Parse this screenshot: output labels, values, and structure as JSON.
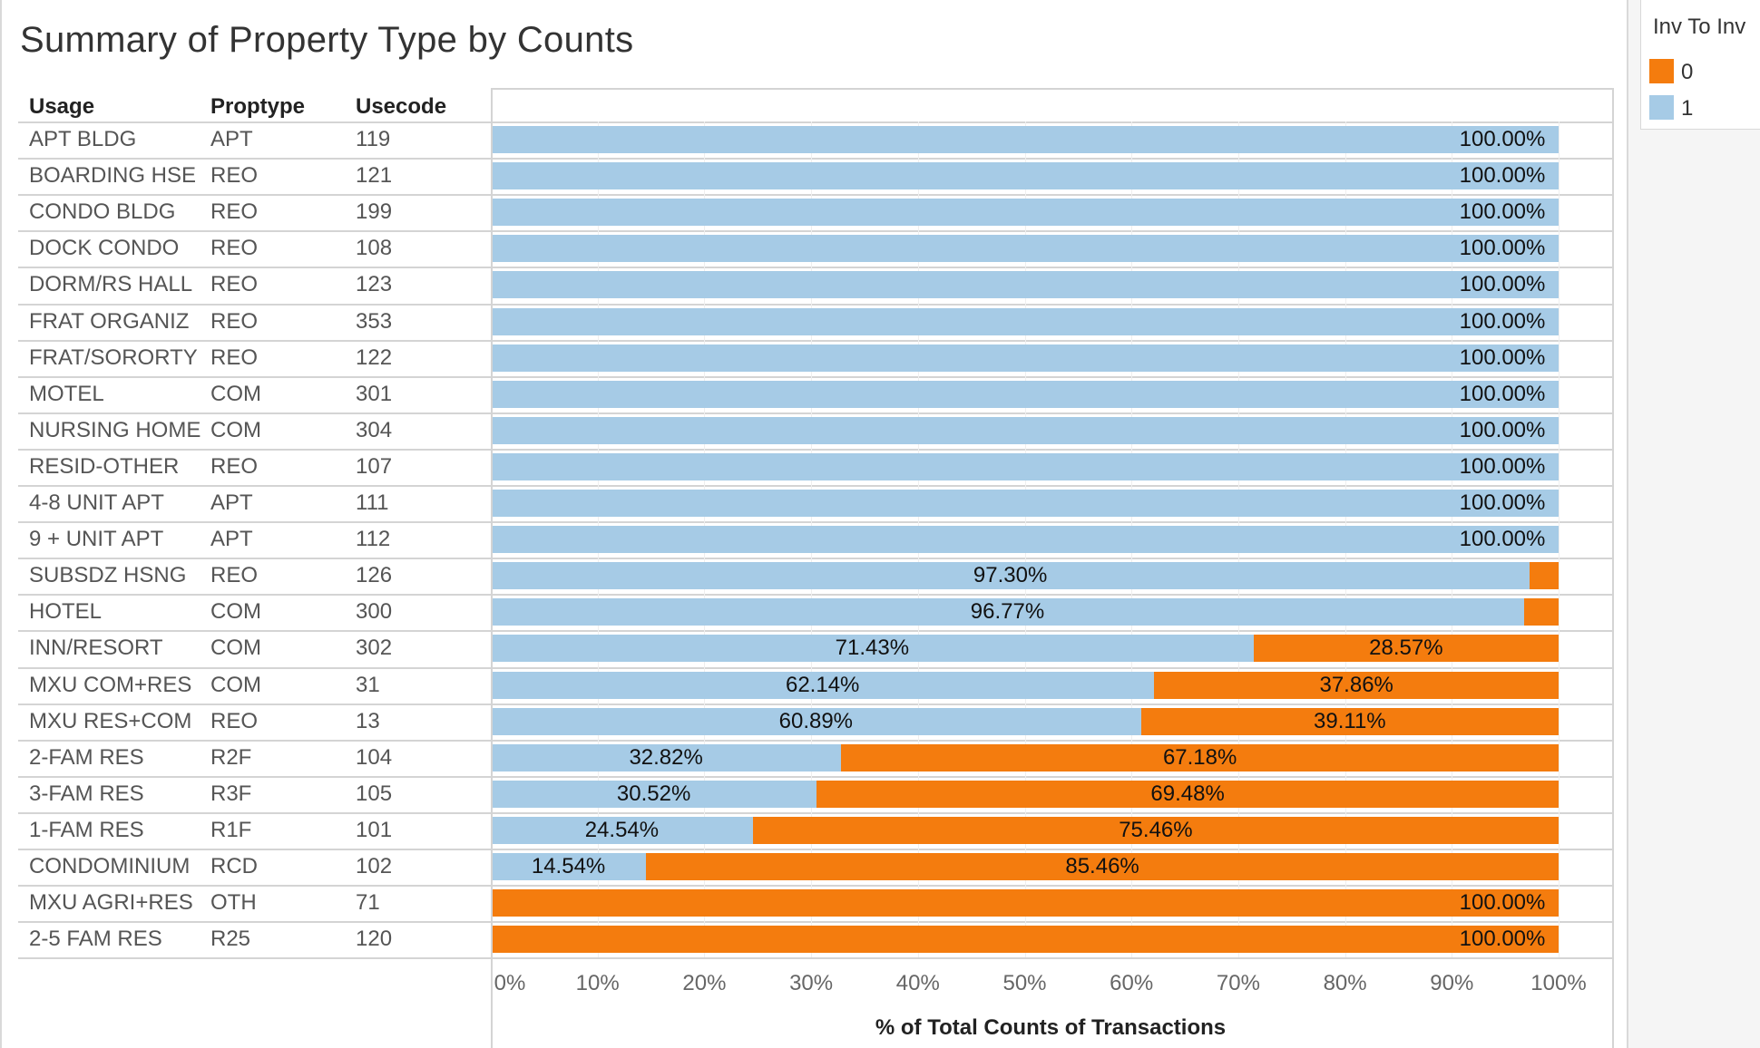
{
  "title": "Summary of Property Type by Counts",
  "headers": {
    "usage": "Usage",
    "proptype": "Proptype",
    "usecode": "Usecode"
  },
  "legend": {
    "title": "Inv To Inv",
    "items": [
      {
        "label": "0",
        "color": "#F47C0E"
      },
      {
        "label": "1",
        "color": "#A6CBE6"
      }
    ]
  },
  "chart_data": {
    "type": "bar",
    "orientation": "horizontal",
    "stacked": true,
    "title": "Summary of Property Type by Counts",
    "xlabel": "% of Total Counts of Transactions",
    "xlim": [
      0,
      100
    ],
    "xticks": [
      "0%",
      "10%",
      "20%",
      "30%",
      "40%",
      "50%",
      "60%",
      "70%",
      "80%",
      "90%",
      "100%"
    ],
    "legend_position": "top-right",
    "rows": [
      {
        "usage": "APT BLDG",
        "proptype": "APT",
        "usecode": "119"
      },
      {
        "usage": "BOARDING HSE",
        "proptype": "REO",
        "usecode": "121"
      },
      {
        "usage": "CONDO BLDG",
        "proptype": "REO",
        "usecode": "199"
      },
      {
        "usage": "DOCK CONDO",
        "proptype": "REO",
        "usecode": "108"
      },
      {
        "usage": "DORM/RS HALL",
        "proptype": "REO",
        "usecode": "123"
      },
      {
        "usage": "FRAT ORGANIZ",
        "proptype": "REO",
        "usecode": "353"
      },
      {
        "usage": "FRAT/SORORTY",
        "proptype": "REO",
        "usecode": "122"
      },
      {
        "usage": "MOTEL",
        "proptype": "COM",
        "usecode": "301"
      },
      {
        "usage": "NURSING HOME",
        "proptype": "COM",
        "usecode": "304"
      },
      {
        "usage": "RESID-OTHER",
        "proptype": "REO",
        "usecode": "107"
      },
      {
        "usage": "4-8 UNIT APT",
        "proptype": "APT",
        "usecode": "111"
      },
      {
        "usage": "9 + UNIT APT",
        "proptype": "APT",
        "usecode": "112"
      },
      {
        "usage": "SUBSDZ HSNG",
        "proptype": "REO",
        "usecode": "126"
      },
      {
        "usage": "HOTEL",
        "proptype": "COM",
        "usecode": "300"
      },
      {
        "usage": "INN/RESORT",
        "proptype": "COM",
        "usecode": "302"
      },
      {
        "usage": "MXU COM+RES",
        "proptype": "COM",
        "usecode": "31"
      },
      {
        "usage": "MXU RES+COM",
        "proptype": "REO",
        "usecode": "13"
      },
      {
        "usage": "2-FAM RES",
        "proptype": "R2F",
        "usecode": "104"
      },
      {
        "usage": "3-FAM RES",
        "proptype": "R3F",
        "usecode": "105"
      },
      {
        "usage": "1-FAM RES",
        "proptype": "R1F",
        "usecode": "101"
      },
      {
        "usage": "CONDOMINIUM",
        "proptype": "RCD",
        "usecode": "102"
      },
      {
        "usage": "MXU AGRI+RES",
        "proptype": "OTH",
        "usecode": "71"
      },
      {
        "usage": "2-5 FAM RES",
        "proptype": "R25",
        "usecode": "120"
      }
    ],
    "series": [
      {
        "name": "1",
        "color": "#A6CBE6",
        "values": [
          100,
          100,
          100,
          100,
          100,
          100,
          100,
          100,
          100,
          100,
          100,
          100,
          97.3,
          96.77,
          71.43,
          62.14,
          60.89,
          32.82,
          30.52,
          24.54,
          14.54,
          0,
          0
        ],
        "labels": [
          "100.00%",
          "100.00%",
          "100.00%",
          "100.00%",
          "100.00%",
          "100.00%",
          "100.00%",
          "100.00%",
          "100.00%",
          "100.00%",
          "100.00%",
          "100.00%",
          "97.30%",
          "96.77%",
          "71.43%",
          "62.14%",
          "60.89%",
          "32.82%",
          "30.52%",
          "24.54%",
          "14.54%",
          "",
          ""
        ]
      },
      {
        "name": "0",
        "color": "#F47C0E",
        "values": [
          0,
          0,
          0,
          0,
          0,
          0,
          0,
          0,
          0,
          0,
          0,
          0,
          2.7,
          3.23,
          28.57,
          37.86,
          39.11,
          67.18,
          69.48,
          75.46,
          85.46,
          100,
          100
        ],
        "labels": [
          "",
          "",
          "",
          "",
          "",
          "",
          "",
          "",
          "",
          "",
          "",
          "",
          "",
          "",
          "28.57%",
          "37.86%",
          "39.11%",
          "67.18%",
          "69.48%",
          "75.46%",
          "85.46%",
          "100.00%",
          "100.00%"
        ]
      }
    ]
  }
}
